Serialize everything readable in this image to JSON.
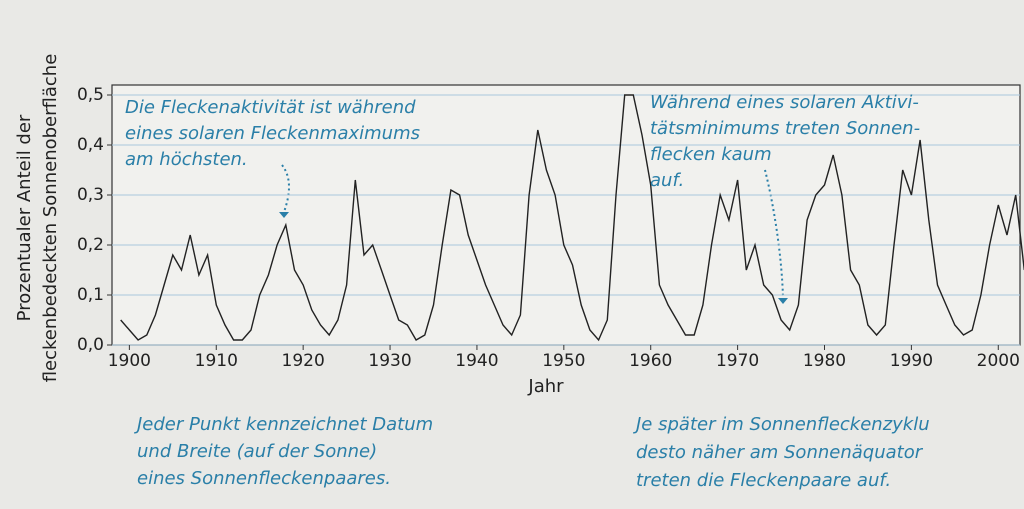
{
  "chart_data": {
    "type": "line",
    "ylabel": [
      "Prozentualer Anteil der",
      "fleckenbedeckten Sonnenoberfläche"
    ],
    "xlabel": "Jahr",
    "annotations": [
      {
        "lines": [
          "Die Fleckenaktivität ist während",
          "eines solaren Fleckenmaximums",
          "am höchsten."
        ]
      },
      {
        "lines": [
          "Während eines solaren Aktivi-",
          "tätsminimums treten Sonnen-",
          "flecken kaum",
          "auf."
        ]
      },
      {
        "lines": [
          "Jeder Punkt kennzeichnet Datum",
          "und Breite (auf der Sonne)",
          "eines Sonnenfleckenpaares."
        ]
      },
      {
        "lines": [
          "Je später im Sonnenfleckenzyklu",
          "desto näher am Sonnenäquator",
          "treten die Fleckenpaare auf."
        ]
      }
    ],
    "x": [
      1899,
      1900,
      1901,
      1902,
      1903,
      1904,
      1905,
      1906,
      1907,
      1908,
      1909,
      1910,
      1911,
      1912,
      1913,
      1914,
      1915,
      1916,
      1917,
      1918,
      1919,
      1920,
      1921,
      1922,
      1923,
      1924,
      1925,
      1926,
      1927,
      1928,
      1929,
      1930,
      1931,
      1932,
      1933,
      1934,
      1935,
      1936,
      1937,
      1938,
      1939,
      1940,
      1941,
      1942,
      1943,
      1944,
      1945,
      1946,
      1947,
      1948,
      1949,
      1950,
      1951,
      1952,
      1953,
      1954,
      1955,
      1956,
      1957,
      1958,
      1959,
      1960,
      1961,
      1962,
      1963,
      1964,
      1965,
      1966,
      1967,
      1968,
      1969,
      1970,
      1971,
      1972,
      1973,
      1974,
      1975,
      1976,
      1977,
      1978,
      1979,
      1980,
      1981,
      1982,
      1983,
      1984,
      1985,
      1986,
      1987,
      1988,
      1989,
      1990,
      1991,
      1992,
      1993,
      1994,
      1995,
      1996,
      1997,
      1998,
      1999,
      2000,
      2001,
      2002,
      2003
    ],
    "series": [
      {
        "color": "#222222",
        "values": [
          0.05,
          0.03,
          0.01,
          0.02,
          0.06,
          0.12,
          0.18,
          0.15,
          0.22,
          0.14,
          0.18,
          0.08,
          0.04,
          0.01,
          0.01,
          0.03,
          0.1,
          0.14,
          0.2,
          0.24,
          0.15,
          0.12,
          0.07,
          0.04,
          0.02,
          0.05,
          0.12,
          0.33,
          0.18,
          0.2,
          0.15,
          0.1,
          0.05,
          0.04,
          0.01,
          0.02,
          0.08,
          0.2,
          0.31,
          0.3,
          0.22,
          0.17,
          0.12,
          0.08,
          0.04,
          0.02,
          0.06,
          0.3,
          0.43,
          0.35,
          0.3,
          0.2,
          0.16,
          0.08,
          0.03,
          0.01,
          0.05,
          0.3,
          0.5,
          0.5,
          0.42,
          0.32,
          0.12,
          0.08,
          0.05,
          0.02,
          0.02,
          0.08,
          0.2,
          0.3,
          0.25,
          0.33,
          0.15,
          0.2,
          0.12,
          0.1,
          0.05,
          0.03,
          0.08,
          0.25,
          0.3,
          0.32,
          0.38,
          0.3,
          0.15,
          0.12,
          0.04,
          0.02,
          0.04,
          0.2,
          0.35,
          0.3,
          0.41,
          0.25,
          0.12,
          0.08,
          0.04,
          0.02,
          0.03,
          0.1,
          0.2,
          0.28,
          0.22,
          0.3,
          0.15
        ]
      }
    ],
    "xlim": [
      1898,
      2002.5
    ],
    "xticks": [
      1900,
      1910,
      1920,
      1930,
      1940,
      1950,
      1960,
      1970,
      1980,
      1990,
      2000
    ],
    "ylim": [
      0,
      0.52
    ],
    "yticks": [
      {
        "value": 0,
        "label": "0,0"
      },
      {
        "value": 0.1,
        "label": "0,1"
      },
      {
        "value": 0.2,
        "label": "0,2"
      },
      {
        "value": 0.3,
        "label": "0,3"
      },
      {
        "value": 0.4,
        "label": "0,4"
      },
      {
        "value": 0.5,
        "label": "0,5"
      }
    ],
    "grid": true
  }
}
